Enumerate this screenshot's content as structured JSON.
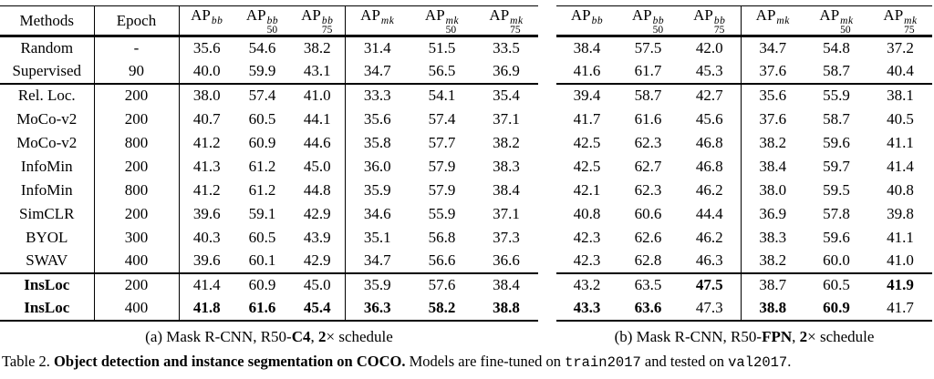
{
  "table": {
    "header": {
      "methods_label": "Methods",
      "epoch_label": "Epoch",
      "ap_base": "AP",
      "ap_columns": [
        {
          "sup": "bb",
          "sub": ""
        },
        {
          "sup": "bb",
          "sub": "50"
        },
        {
          "sup": "bb",
          "sub": "75"
        },
        {
          "sup": "mk",
          "sub": ""
        },
        {
          "sup": "mk",
          "sub": "50"
        },
        {
          "sup": "mk",
          "sub": "75"
        }
      ]
    },
    "rows": [
      {
        "method": "Random",
        "epoch": "-",
        "a": [
          "35.6",
          "54.6",
          "38.2",
          "31.4",
          "51.5",
          "33.5"
        ],
        "b": [
          "38.4",
          "57.5",
          "42.0",
          "34.7",
          "54.8",
          "37.2"
        ]
      },
      {
        "method": "Supervised",
        "epoch": "90",
        "a": [
          "40.0",
          "59.9",
          "43.1",
          "34.7",
          "56.5",
          "36.9"
        ],
        "b": [
          "41.6",
          "61.7",
          "45.3",
          "37.6",
          "58.7",
          "40.4"
        ],
        "rule_after": true
      },
      {
        "method": "Rel. Loc.",
        "epoch": "200",
        "a": [
          "38.0",
          "57.4",
          "41.0",
          "33.3",
          "54.1",
          "35.4"
        ],
        "b": [
          "39.4",
          "58.7",
          "42.7",
          "35.6",
          "55.9",
          "38.1"
        ]
      },
      {
        "method": "MoCo-v2",
        "epoch": "200",
        "a": [
          "40.7",
          "60.5",
          "44.1",
          "35.6",
          "57.4",
          "37.1"
        ],
        "b": [
          "41.7",
          "61.6",
          "45.6",
          "37.6",
          "58.7",
          "40.5"
        ]
      },
      {
        "method": "MoCo-v2",
        "epoch": "800",
        "a": [
          "41.2",
          "60.9",
          "44.6",
          "35.8",
          "57.7",
          "38.2"
        ],
        "b": [
          "42.5",
          "62.3",
          "46.8",
          "38.2",
          "59.6",
          "41.1"
        ]
      },
      {
        "method": "InfoMin",
        "epoch": "200",
        "a": [
          "41.3",
          "61.2",
          "45.0",
          "36.0",
          "57.9",
          "38.3"
        ],
        "b": [
          "42.5",
          "62.7",
          "46.8",
          "38.4",
          "59.7",
          "41.4"
        ]
      },
      {
        "method": "InfoMin",
        "epoch": "800",
        "a": [
          "41.2",
          "61.2",
          "44.8",
          "35.9",
          "57.9",
          "38.4"
        ],
        "b": [
          "42.1",
          "62.3",
          "46.2",
          "38.0",
          "59.5",
          "40.8"
        ]
      },
      {
        "method": "SimCLR",
        "epoch": "200",
        "a": [
          "39.6",
          "59.1",
          "42.9",
          "34.6",
          "55.9",
          "37.1"
        ],
        "b": [
          "40.8",
          "60.6",
          "44.4",
          "36.9",
          "57.8",
          "39.8"
        ]
      },
      {
        "method": "BYOL",
        "epoch": "300",
        "a": [
          "40.3",
          "60.5",
          "43.9",
          "35.1",
          "56.8",
          "37.3"
        ],
        "b": [
          "42.3",
          "62.6",
          "46.2",
          "38.3",
          "59.6",
          "41.1"
        ]
      },
      {
        "method": "SWAV",
        "epoch": "400",
        "a": [
          "39.6",
          "60.1",
          "42.9",
          "34.7",
          "56.6",
          "36.6"
        ],
        "b": [
          "42.3",
          "62.8",
          "46.3",
          "38.2",
          "60.0",
          "41.0"
        ],
        "rule_after": true
      },
      {
        "method": "InsLoc",
        "epoch": "200",
        "method_bold": true,
        "a": [
          "41.4",
          "60.9",
          "45.0",
          "35.9",
          "57.6",
          "38.4"
        ],
        "a_bold": [
          0,
          0,
          0,
          0,
          0,
          0
        ],
        "b": [
          "43.2",
          "63.5",
          "47.5",
          "38.7",
          "60.5",
          "41.9"
        ],
        "b_bold": [
          0,
          0,
          1,
          0,
          0,
          1
        ]
      },
      {
        "method": "InsLoc",
        "epoch": "400",
        "method_bold": true,
        "a": [
          "41.8",
          "61.6",
          "45.4",
          "36.3",
          "58.2",
          "38.8"
        ],
        "a_bold": [
          1,
          1,
          1,
          1,
          1,
          1
        ],
        "b": [
          "43.3",
          "63.6",
          "47.3",
          "38.8",
          "60.9",
          "41.7"
        ],
        "b_bold": [
          1,
          1,
          0,
          1,
          1,
          0
        ]
      }
    ]
  },
  "subcaptions": {
    "a": [
      {
        "t": "(a) Mask R-CNN, R50-"
      },
      {
        "t": "C4",
        "bold": true
      },
      {
        "t": ", "
      },
      {
        "t": "2",
        "bold": true
      },
      {
        "t": "× schedule"
      }
    ],
    "b": [
      {
        "t": "(b) Mask R-CNN, R50-"
      },
      {
        "t": "FPN",
        "bold": true
      },
      {
        "t": ", "
      },
      {
        "t": "2",
        "bold": true
      },
      {
        "t": "× schedule"
      }
    ]
  },
  "caption": [
    {
      "t": "Table 2. "
    },
    {
      "t": "Object detection and instance segmentation on COCO.",
      "bold": true
    },
    {
      "t": " Models are fine-tuned on "
    },
    {
      "t": "train2017",
      "mono": true
    },
    {
      "t": " and tested on "
    },
    {
      "t": "val2017",
      "mono": true
    },
    {
      "t": "."
    }
  ],
  "colors": {
    "text": "#000000",
    "background": "#ffffff"
  }
}
